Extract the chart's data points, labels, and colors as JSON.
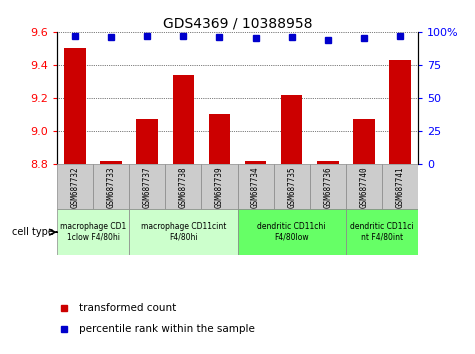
{
  "title": "GDS4369 / 10388958",
  "samples": [
    "GSM687732",
    "GSM687733",
    "GSM687737",
    "GSM687738",
    "GSM687739",
    "GSM687734",
    "GSM687735",
    "GSM687736",
    "GSM687740",
    "GSM687741"
  ],
  "transformed_count": [
    9.5,
    8.82,
    9.07,
    9.34,
    9.1,
    8.82,
    9.22,
    8.82,
    9.07,
    9.43
  ],
  "percentile_rank": [
    97,
    96,
    97,
    97,
    96,
    95,
    96,
    94,
    95,
    97
  ],
  "ylim_left": [
    8.8,
    9.6
  ],
  "ylim_right": [
    0,
    100
  ],
  "yticks_left": [
    8.8,
    9.0,
    9.2,
    9.4,
    9.6
  ],
  "yticks_right": [
    0,
    25,
    50,
    75,
    100
  ],
  "bar_color": "#cc0000",
  "dot_color": "#0000cc",
  "cell_type_groups": [
    {
      "label": "macrophage CD1\n1clow F4/80hi",
      "start": 0,
      "end": 2,
      "color": "#ccffcc"
    },
    {
      "label": "macrophage CD11cint\nF4/80hi",
      "start": 2,
      "end": 5,
      "color": "#ccffcc"
    },
    {
      "label": "dendritic CD11chi\nF4/80low",
      "start": 5,
      "end": 8,
      "color": "#66ff66"
    },
    {
      "label": "dendritic CD11ci\nnt F4/80int",
      "start": 8,
      "end": 10,
      "color": "#66ff66"
    }
  ],
  "legend_bar_label": "transformed count",
  "legend_dot_label": "percentile rank within the sample",
  "cell_type_label": "cell type"
}
